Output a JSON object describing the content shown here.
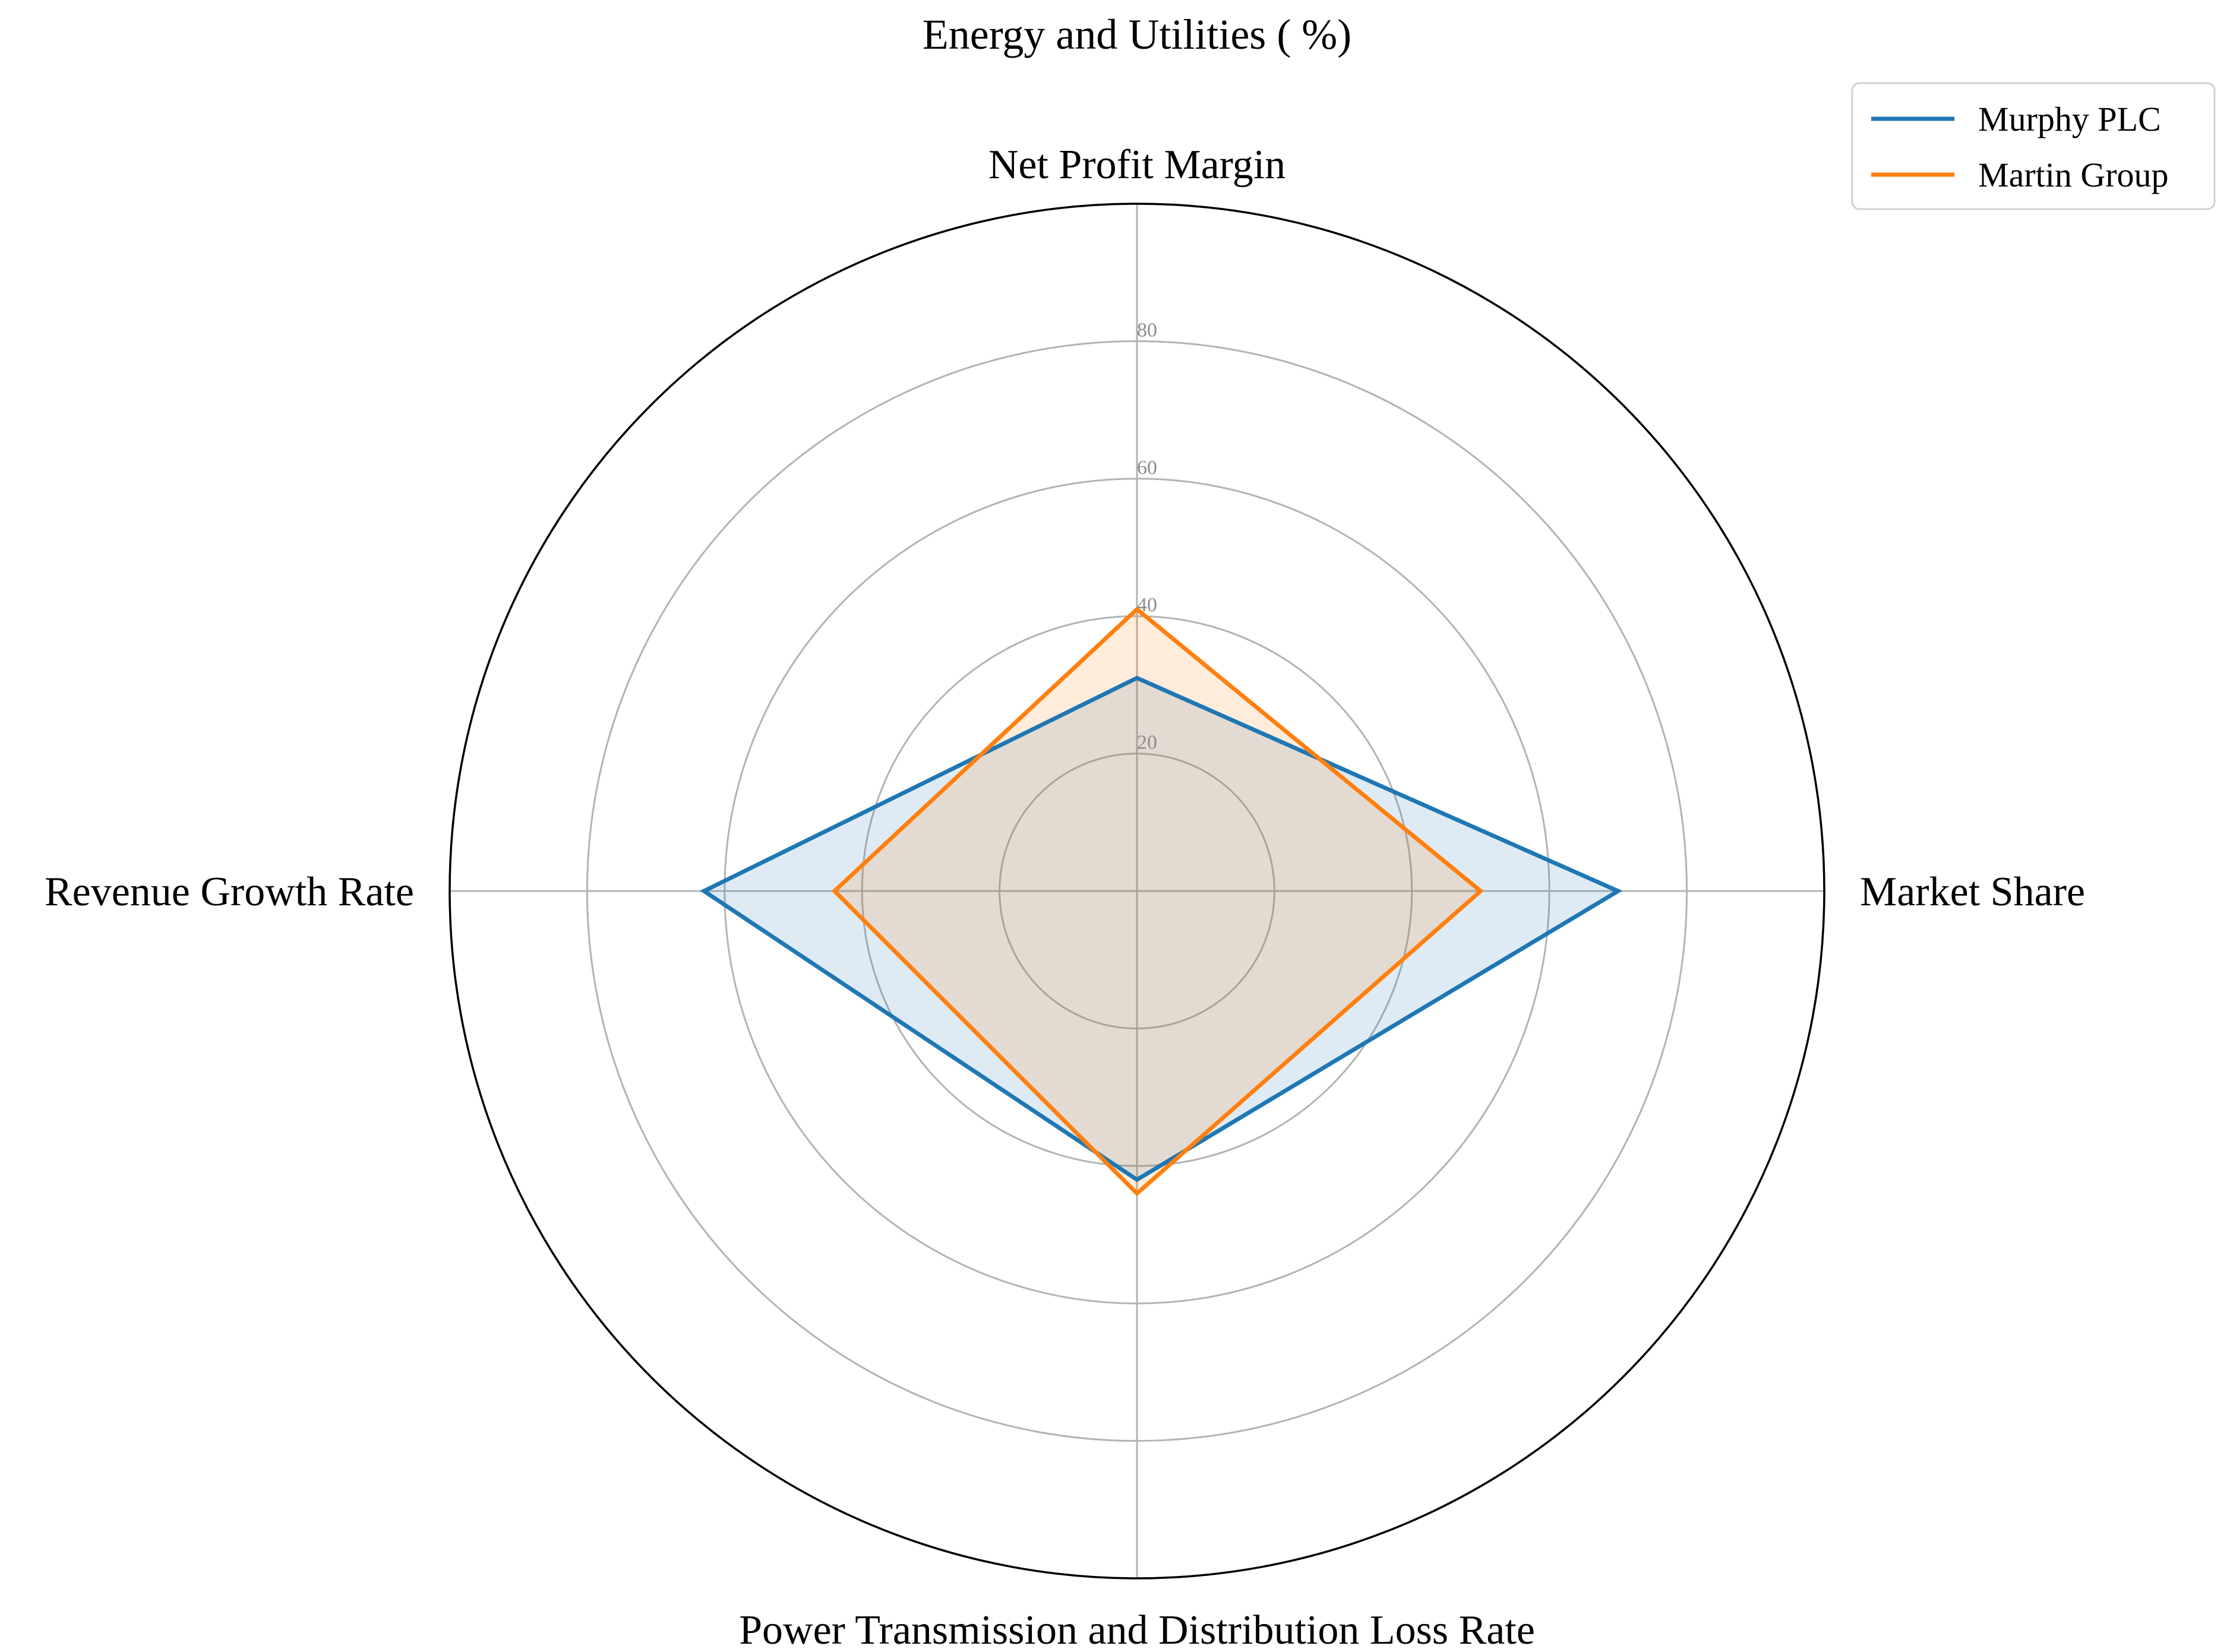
{
  "chart_data": {
    "type": "radar",
    "title": "Energy and Utilities ( %)",
    "axes": [
      "Net Profit Margin",
      "Market Share",
      "Power Transmission and Distribution Loss Rate",
      "Revenue Growth Rate"
    ],
    "rmax": 100,
    "rticks": [
      20,
      40,
      60,
      80
    ],
    "grid": true,
    "legend": "top-right",
    "series": [
      {
        "name": "Murphy PLC",
        "values": [
          31,
          70,
          42,
          63
        ],
        "color": "#1f77b4"
      },
      {
        "name": "Martin Group",
        "values": [
          41,
          50,
          44,
          44
        ],
        "color": "#ff7f0e"
      }
    ]
  }
}
